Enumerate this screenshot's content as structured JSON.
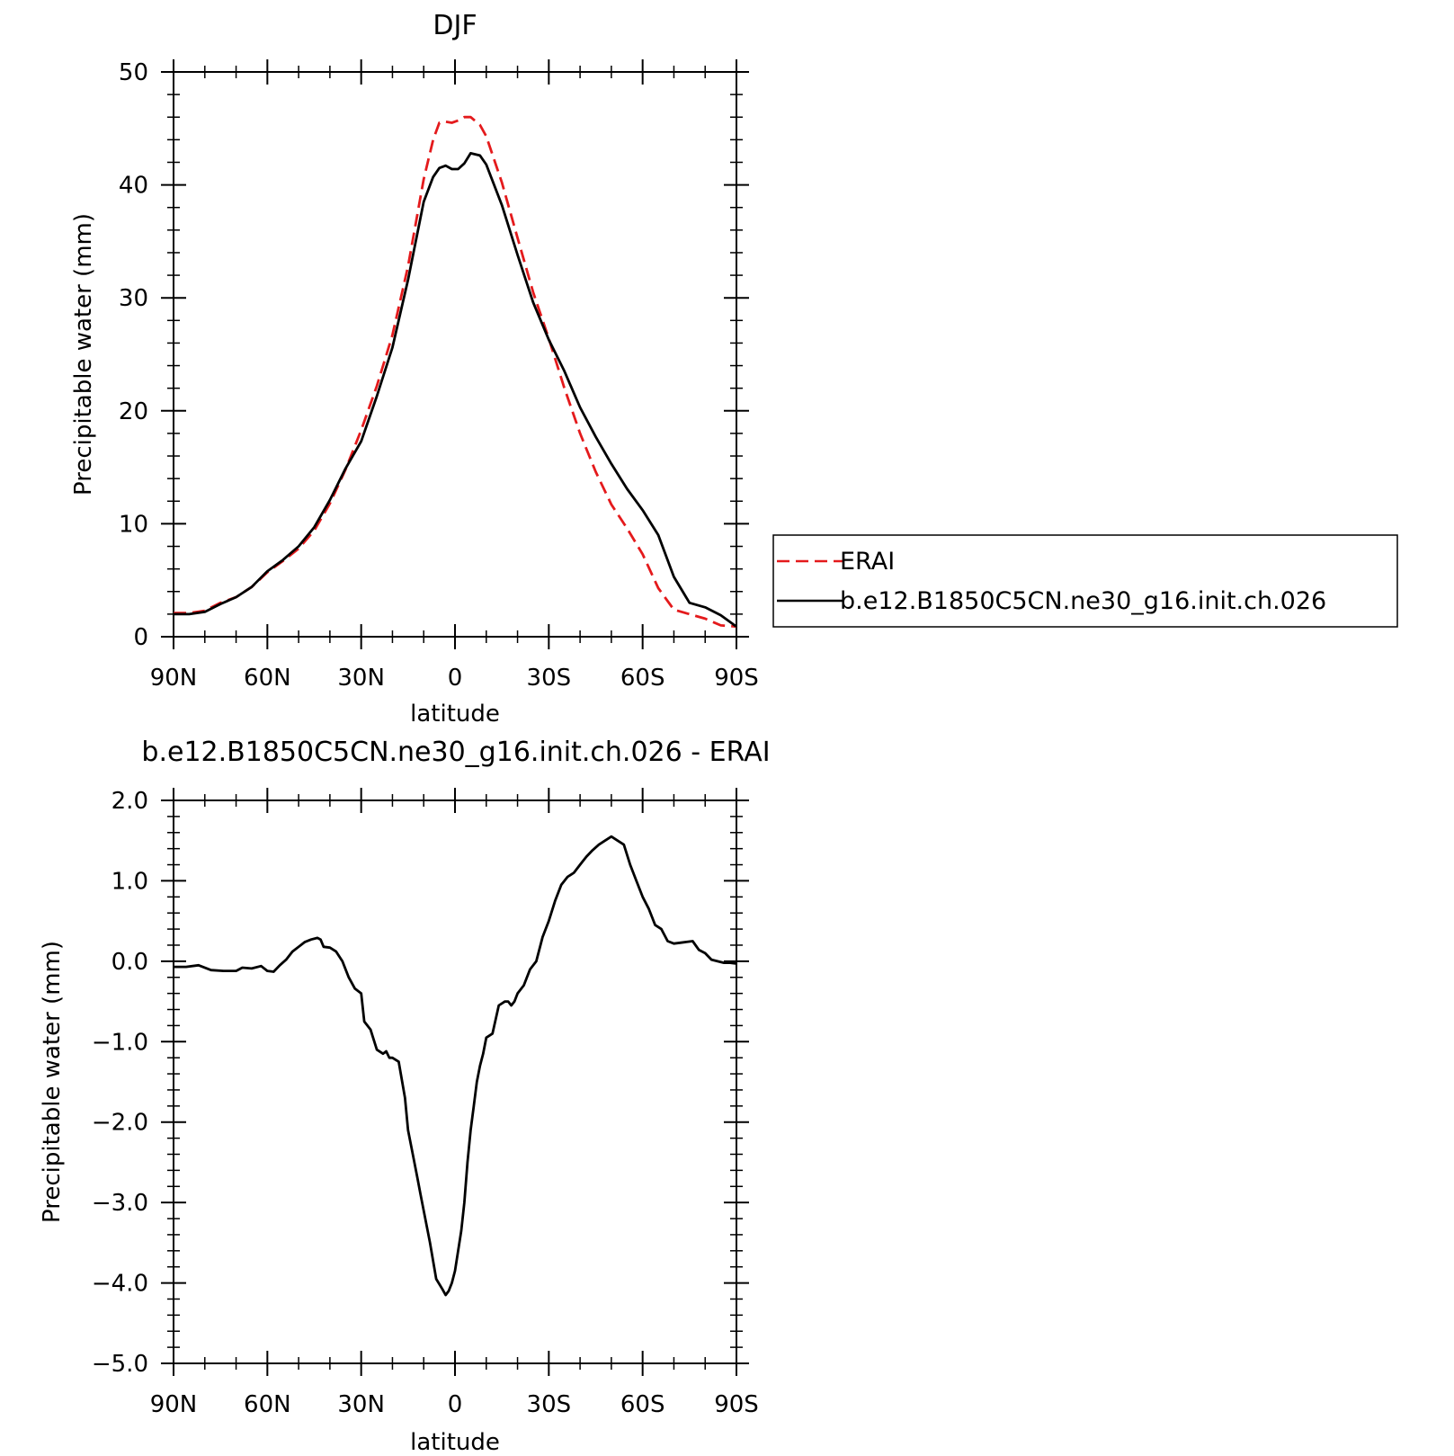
{
  "colors": {
    "reference": "#e41a1c",
    "model": "#000000"
  },
  "chart_data": [
    {
      "type": "line",
      "title": "DJF",
      "xlabel": "latitude",
      "ylabel": "Precipitable water (mm)",
      "xlim": [
        90,
        -90
      ],
      "ylim": [
        0,
        50
      ],
      "x_ticks": [
        90,
        60,
        30,
        0,
        -30,
        -60,
        -90
      ],
      "x_tick_labels": [
        "90N",
        "60N",
        "30N",
        "0",
        "30S",
        "60S",
        "90S"
      ],
      "y_ticks": [
        0,
        10,
        20,
        30,
        40,
        50
      ],
      "y_tick_labels": [
        "0",
        "10",
        "20",
        "30",
        "40",
        "50"
      ],
      "legend_position": "right",
      "series": [
        {
          "name": "ERAI",
          "style": "dashed",
          "color": "#e41a1c",
          "x": [
            90,
            85,
            80,
            75,
            70,
            65,
            60,
            55,
            50,
            45,
            40,
            35,
            30,
            25,
            20,
            15,
            10,
            7,
            5,
            3,
            1,
            -1,
            -3,
            -5,
            -8,
            -10,
            -15,
            -20,
            -25,
            -30,
            -35,
            -40,
            -45,
            -50,
            -55,
            -60,
            -65,
            -70,
            -75,
            -80,
            -85,
            -90
          ],
          "values": [
            2.1,
            2.1,
            2.3,
            3.0,
            3.5,
            4.4,
            5.7,
            6.7,
            7.8,
            9.4,
            11.8,
            14.8,
            18.3,
            22.2,
            26.7,
            32.8,
            40.5,
            44.0,
            45.5,
            45.6,
            45.5,
            45.7,
            46.0,
            46.0,
            45.3,
            44.3,
            40.2,
            35.3,
            30.5,
            26.4,
            22.0,
            18.0,
            14.6,
            11.7,
            9.6,
            7.3,
            4.3,
            2.4,
            2.0,
            1.6,
            1.0,
            0.9
          ]
        },
        {
          "name": "b.e12.B1850C5CN.ne30_g16.init.ch.026",
          "style": "solid",
          "color": "#000000",
          "x": [
            90,
            85,
            80,
            75,
            70,
            65,
            60,
            55,
            50,
            45,
            40,
            35,
            30,
            25,
            20,
            15,
            10,
            7,
            5,
            3,
            1,
            -1,
            -3,
            -5,
            -8,
            -10,
            -15,
            -20,
            -25,
            -30,
            -35,
            -40,
            -45,
            -50,
            -55,
            -60,
            -65,
            -70,
            -75,
            -80,
            -85,
            -90
          ],
          "values": [
            2.0,
            2.0,
            2.2,
            2.9,
            3.5,
            4.4,
            5.8,
            6.8,
            8.0,
            9.7,
            12.1,
            14.9,
            17.3,
            21.3,
            25.6,
            31.6,
            38.5,
            40.7,
            41.5,
            41.7,
            41.4,
            41.4,
            41.9,
            42.8,
            42.6,
            41.8,
            38.2,
            33.8,
            29.6,
            26.3,
            23.5,
            20.3,
            17.7,
            15.3,
            13.1,
            11.2,
            9.0,
            5.3,
            3.0,
            2.6,
            1.9,
            0.9
          ]
        }
      ]
    },
    {
      "type": "line",
      "title": "b.e12.B1850C5CN.ne30_g16.init.ch.026 - ERAI",
      "xlabel": "latitude",
      "ylabel": "Precipitable water (mm)",
      "xlim": [
        90,
        -90
      ],
      "ylim": [
        -5.0,
        2.0
      ],
      "x_ticks": [
        90,
        60,
        30,
        0,
        -30,
        -60,
        -90
      ],
      "x_tick_labels": [
        "90N",
        "60N",
        "30N",
        "0",
        "30S",
        "60S",
        "90S"
      ],
      "y_ticks": [
        -5.0,
        -4.0,
        -3.0,
        -2.0,
        -1.0,
        0.0,
        1.0,
        2.0
      ],
      "y_tick_labels": [
        "−5.0",
        "−4.0",
        "−3.0",
        "−2.0",
        "−1.0",
        "0.0",
        "1.0",
        "2.0"
      ],
      "series": [
        {
          "style": "solid",
          "color": "#000000",
          "x": [
            90,
            86,
            82,
            78,
            74,
            70,
            68,
            65,
            62,
            60,
            58,
            56,
            54,
            52,
            50,
            48,
            46,
            44,
            43,
            42,
            40,
            38,
            36,
            34,
            32,
            30,
            29,
            28,
            27,
            25,
            23,
            22,
            21,
            20,
            18,
            16,
            15,
            14,
            13,
            12,
            11,
            10,
            8,
            6,
            4,
            3,
            2,
            1,
            0,
            -1,
            -2,
            -3,
            -4,
            -5,
            -6,
            -7,
            -8,
            -9,
            -10,
            -12,
            -14,
            -16,
            -17,
            -18,
            -19,
            -20,
            -22,
            -24,
            -26,
            -28,
            -30,
            -32,
            -34,
            -36,
            -38,
            -40,
            -42,
            -44,
            -46,
            -48,
            -50,
            -52,
            -54,
            -56,
            -58,
            -60,
            -62,
            -64,
            -66,
            -68,
            -70,
            -72,
            -74,
            -76,
            -78,
            -80,
            -82,
            -84,
            -86,
            -88,
            -90
          ],
          "values": [
            -0.07,
            -0.07,
            -0.05,
            -0.11,
            -0.12,
            -0.12,
            -0.08,
            -0.09,
            -0.06,
            -0.12,
            -0.13,
            -0.05,
            0.02,
            0.12,
            0.18,
            0.24,
            0.27,
            0.29,
            0.27,
            0.18,
            0.17,
            0.12,
            0.0,
            -0.2,
            -0.34,
            -0.4,
            -0.75,
            -0.8,
            -0.85,
            -1.1,
            -1.15,
            -1.12,
            -1.2,
            -1.2,
            -1.25,
            -1.7,
            -2.1,
            -2.3,
            -2.5,
            -2.7,
            -2.9,
            -3.1,
            -3.5,
            -3.95,
            -4.08,
            -4.15,
            -4.1,
            -4.0,
            -3.85,
            -3.6,
            -3.35,
            -3.0,
            -2.5,
            -2.1,
            -1.8,
            -1.5,
            -1.3,
            -1.15,
            -0.95,
            -0.9,
            -0.55,
            -0.5,
            -0.5,
            -0.55,
            -0.5,
            -0.4,
            -0.3,
            -0.1,
            0.0,
            0.3,
            0.5,
            0.75,
            0.95,
            1.05,
            1.1,
            1.2,
            1.3,
            1.38,
            1.45,
            1.5,
            1.55,
            1.5,
            1.45,
            1.2,
            1.0,
            0.8,
            0.65,
            0.45,
            0.4,
            0.25,
            0.22,
            0.23,
            0.24,
            0.25,
            0.14,
            0.1,
            0.02,
            0.0,
            -0.02,
            -0.02,
            -0.03
          ]
        }
      ]
    }
  ]
}
